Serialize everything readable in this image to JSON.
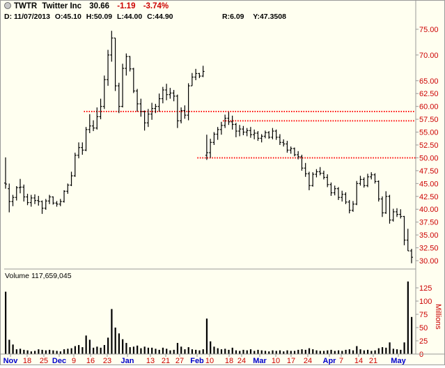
{
  "header": {
    "symbol": "TWTR",
    "name": "Twitter Inc",
    "last": "30.66",
    "change": "-1.19",
    "change_pct": "-3.74%",
    "info_date": "D: 11/07/2013",
    "info_open": "O:45.10",
    "info_high": "H:50.09",
    "info_low": "L:44.00",
    "info_close": "C:44.90",
    "info_r": "R:6.09",
    "info_y": "Y:47.3508",
    "volume_label": "Volume 117,659,045"
  },
  "colors": {
    "background": "#fffff0",
    "bars": "#000000",
    "price_labels": "#cc0000",
    "month_labels": "#0000cc",
    "support_lines": "#ff0000"
  },
  "chart_data": {
    "type": "ohlc",
    "price_ylim": [
      28.8,
      77.5
    ],
    "price_ticks": [
      "75.00",
      "70.00",
      "65.00",
      "62.50",
      "60.00",
      "57.50",
      "55.00",
      "52.50",
      "50.00",
      "47.50",
      "45.00",
      "42.50",
      "40.00",
      "37.50",
      "35.00",
      "32.50",
      "30.00"
    ],
    "volume_ylim": [
      0,
      140
    ],
    "volume_ticks": [
      "125",
      "100",
      "75",
      "50",
      "25",
      "0"
    ],
    "volume_axis_label": "Millions",
    "x_labels": [
      "Nov",
      "18",
      "25",
      "Dec",
      "9",
      "16",
      "23",
      "Jan",
      "13",
      "21",
      "27",
      "Feb",
      "10",
      "18",
      "24",
      "Mar",
      "10",
      "17",
      "24",
      "Apr",
      "7",
      "14",
      "21",
      "May"
    ],
    "month_labels": [
      "Nov",
      "Dec",
      "Jan",
      "Feb",
      "Mar",
      "Apr",
      "May"
    ],
    "horizontal_lines": [
      {
        "price": 59.0,
        "from_index": 22
      },
      {
        "price": 57.2,
        "from_index": 60
      },
      {
        "price": 50.0,
        "from_index": 53
      }
    ],
    "bars": [
      {
        "o": 45.1,
        "h": 50.09,
        "l": 44.0,
        "c": 44.9,
        "v": 117.7
      },
      {
        "o": 44.0,
        "h": 45.0,
        "l": 39.4,
        "c": 41.5,
        "v": 27
      },
      {
        "o": 41.5,
        "h": 42.8,
        "l": 40.6,
        "c": 42.3,
        "v": 18
      },
      {
        "o": 42.3,
        "h": 44.5,
        "l": 41.7,
        "c": 44.2,
        "v": 9
      },
      {
        "o": 44.2,
        "h": 45.9,
        "l": 43.1,
        "c": 44.3,
        "v": 10
      },
      {
        "o": 44.3,
        "h": 44.8,
        "l": 41.5,
        "c": 42.4,
        "v": 8
      },
      {
        "o": 42.4,
        "h": 43.0,
        "l": 40.8,
        "c": 41.3,
        "v": 7
      },
      {
        "o": 41.3,
        "h": 42.8,
        "l": 40.5,
        "c": 42.2,
        "v": 5
      },
      {
        "o": 42.2,
        "h": 42.9,
        "l": 41.0,
        "c": 41.7,
        "v": 6
      },
      {
        "o": 41.7,
        "h": 42.6,
        "l": 40.7,
        "c": 41.5,
        "v": 9
      },
      {
        "o": 41.5,
        "h": 41.7,
        "l": 39.1,
        "c": 40.2,
        "v": 8
      },
      {
        "o": 40.2,
        "h": 42.0,
        "l": 39.9,
        "c": 41.6,
        "v": 7
      },
      {
        "o": 41.6,
        "h": 42.8,
        "l": 41.0,
        "c": 42.4,
        "v": 8
      },
      {
        "o": 42.4,
        "h": 42.5,
        "l": 40.9,
        "c": 41.2,
        "v": 7
      },
      {
        "o": 41.2,
        "h": 41.6,
        "l": 40.5,
        "c": 41.0,
        "v": 6
      },
      {
        "o": 41.0,
        "h": 42.0,
        "l": 40.6,
        "c": 41.5,
        "v": 5
      },
      {
        "o": 41.5,
        "h": 43.7,
        "l": 41.3,
        "c": 43.5,
        "v": 9
      },
      {
        "o": 43.5,
        "h": 45.0,
        "l": 43.0,
        "c": 44.7,
        "v": 10
      },
      {
        "o": 44.7,
        "h": 47.3,
        "l": 44.5,
        "c": 46.5,
        "v": 11
      },
      {
        "o": 46.5,
        "h": 51.0,
        "l": 46.3,
        "c": 50.5,
        "v": 15
      },
      {
        "o": 50.5,
        "h": 53.0,
        "l": 49.9,
        "c": 52.0,
        "v": 17
      },
      {
        "o": 52.0,
        "h": 53.0,
        "l": 50.6,
        "c": 51.5,
        "v": 13
      },
      {
        "o": 51.5,
        "h": 56.0,
        "l": 51.3,
        "c": 55.5,
        "v": 35
      },
      {
        "o": 55.5,
        "h": 58.5,
        "l": 54.8,
        "c": 56.2,
        "v": 27
      },
      {
        "o": 56.2,
        "h": 57.3,
        "l": 55.2,
        "c": 55.8,
        "v": 12
      },
      {
        "o": 55.8,
        "h": 59.8,
        "l": 55.5,
        "c": 58.0,
        "v": 14
      },
      {
        "o": 58.0,
        "h": 61.5,
        "l": 57.5,
        "c": 60.0,
        "v": 12
      },
      {
        "o": 60.0,
        "h": 66.0,
        "l": 59.5,
        "c": 65.2,
        "v": 17
      },
      {
        "o": 65.2,
        "h": 71.0,
        "l": 64.0,
        "c": 70.0,
        "v": 31
      },
      {
        "o": 70.0,
        "h": 74.7,
        "l": 68.7,
        "c": 73.3,
        "v": 85
      },
      {
        "o": 73.3,
        "h": 70.0,
        "l": 63.0,
        "c": 64.0,
        "v": 50
      },
      {
        "o": 64.0,
        "h": 64.6,
        "l": 58.7,
        "c": 60.0,
        "v": 39
      },
      {
        "o": 60.0,
        "h": 68.3,
        "l": 59.8,
        "c": 67.4,
        "v": 28
      },
      {
        "o": 67.4,
        "h": 70.3,
        "l": 66.0,
        "c": 69.7,
        "v": 21
      },
      {
        "o": 69.7,
        "h": 69.8,
        "l": 66.8,
        "c": 67.3,
        "v": 13
      },
      {
        "o": 67.3,
        "h": 67.5,
        "l": 62.6,
        "c": 63.0,
        "v": 14
      },
      {
        "o": 63.0,
        "h": 63.4,
        "l": 59.0,
        "c": 60.5,
        "v": 16
      },
      {
        "o": 60.5,
        "h": 61.5,
        "l": 58.0,
        "c": 59.0,
        "v": 11
      },
      {
        "o": 59.0,
        "h": 59.2,
        "l": 55.3,
        "c": 56.8,
        "v": 14
      },
      {
        "o": 56.8,
        "h": 59.5,
        "l": 56.0,
        "c": 58.5,
        "v": 12
      },
      {
        "o": 58.5,
        "h": 60.7,
        "l": 57.4,
        "c": 59.6,
        "v": 12
      },
      {
        "o": 59.6,
        "h": 60.5,
        "l": 58.7,
        "c": 60.0,
        "v": 10
      },
      {
        "o": 60.0,
        "h": 62.5,
        "l": 59.0,
        "c": 61.5,
        "v": 8
      },
      {
        "o": 61.5,
        "h": 63.8,
        "l": 60.6,
        "c": 63.2,
        "v": 12
      },
      {
        "o": 63.2,
        "h": 64.4,
        "l": 61.2,
        "c": 62.3,
        "v": 10
      },
      {
        "o": 62.3,
        "h": 63.6,
        "l": 61.5,
        "c": 62.6,
        "v": 7
      },
      {
        "o": 62.6,
        "h": 63.2,
        "l": 61.0,
        "c": 62.0,
        "v": 8
      },
      {
        "o": 62.0,
        "h": 62.3,
        "l": 55.8,
        "c": 57.2,
        "v": 21
      },
      {
        "o": 57.2,
        "h": 59.8,
        "l": 56.7,
        "c": 59.2,
        "v": 14
      },
      {
        "o": 59.2,
        "h": 60.2,
        "l": 57.6,
        "c": 58.3,
        "v": 9
      },
      {
        "o": 58.3,
        "h": 64.5,
        "l": 57.3,
        "c": 64.0,
        "v": 13
      },
      {
        "o": 64.0,
        "h": 66.5,
        "l": 64.0,
        "c": 65.7,
        "v": 9
      },
      {
        "o": 65.7,
        "h": 67.3,
        "l": 65.1,
        "c": 66.4,
        "v": 8
      },
      {
        "o": 66.4,
        "h": 66.5,
        "l": 65.5,
        "c": 65.9,
        "v": 7
      },
      {
        "o": 65.9,
        "h": 67.9,
        "l": 65.7,
        "c": 66.8,
        "v": 9
      },
      {
        "o": 50.5,
        "h": 54.5,
        "l": 49.6,
        "c": 51.0,
        "v": 67
      },
      {
        "o": 51.0,
        "h": 53.7,
        "l": 50.0,
        "c": 53.0,
        "v": 24
      },
      {
        "o": 53.0,
        "h": 55.0,
        "l": 52.5,
        "c": 54.6,
        "v": 14
      },
      {
        "o": 54.6,
        "h": 56.0,
        "l": 53.5,
        "c": 55.5,
        "v": 11
      },
      {
        "o": 55.5,
        "h": 57.0,
        "l": 54.5,
        "c": 56.3,
        "v": 9
      },
      {
        "o": 56.3,
        "h": 58.4,
        "l": 55.8,
        "c": 57.7,
        "v": 10
      },
      {
        "o": 57.7,
        "h": 58.9,
        "l": 56.4,
        "c": 57.0,
        "v": 8
      },
      {
        "o": 57.0,
        "h": 58.2,
        "l": 55.5,
        "c": 56.5,
        "v": 12
      },
      {
        "o": 56.5,
        "h": 56.8,
        "l": 54.0,
        "c": 55.2,
        "v": 7
      },
      {
        "o": 55.2,
        "h": 56.4,
        "l": 54.2,
        "c": 55.6,
        "v": 6
      },
      {
        "o": 55.6,
        "h": 56.2,
        "l": 54.4,
        "c": 55.0,
        "v": 8
      },
      {
        "o": 55.0,
        "h": 55.8,
        "l": 54.2,
        "c": 55.3,
        "v": 7
      },
      {
        "o": 55.3,
        "h": 56.0,
        "l": 53.9,
        "c": 54.5,
        "v": 9
      },
      {
        "o": 54.5,
        "h": 55.5,
        "l": 53.6,
        "c": 54.8,
        "v": 6
      },
      {
        "o": 54.8,
        "h": 55.2,
        "l": 53.3,
        "c": 53.8,
        "v": 8
      },
      {
        "o": 53.8,
        "h": 54.6,
        "l": 53.0,
        "c": 54.2,
        "v": 7
      },
      {
        "o": 54.2,
        "h": 55.3,
        "l": 53.8,
        "c": 54.9,
        "v": 6
      },
      {
        "o": 54.9,
        "h": 55.2,
        "l": 53.7,
        "c": 54.0,
        "v": 5
      },
      {
        "o": 54.0,
        "h": 55.8,
        "l": 53.6,
        "c": 55.2,
        "v": 7
      },
      {
        "o": 55.2,
        "h": 55.5,
        "l": 53.5,
        "c": 54.0,
        "v": 6
      },
      {
        "o": 54.0,
        "h": 54.6,
        "l": 52.5,
        "c": 53.0,
        "v": 7
      },
      {
        "o": 53.0,
        "h": 53.6,
        "l": 52.2,
        "c": 52.7,
        "v": 5
      },
      {
        "o": 52.7,
        "h": 53.3,
        "l": 51.0,
        "c": 51.5,
        "v": 7
      },
      {
        "o": 51.5,
        "h": 52.2,
        "l": 50.8,
        "c": 51.8,
        "v": 6
      },
      {
        "o": 51.8,
        "h": 52.0,
        "l": 50.3,
        "c": 50.6,
        "v": 6
      },
      {
        "o": 50.6,
        "h": 51.3,
        "l": 49.7,
        "c": 50.2,
        "v": 8
      },
      {
        "o": 50.2,
        "h": 50.6,
        "l": 47.5,
        "c": 48.0,
        "v": 9
      },
      {
        "o": 48.0,
        "h": 49.0,
        "l": 46.3,
        "c": 46.9,
        "v": 8
      },
      {
        "o": 46.9,
        "h": 47.3,
        "l": 43.7,
        "c": 44.6,
        "v": 11
      },
      {
        "o": 44.6,
        "h": 47.2,
        "l": 44.4,
        "c": 46.8,
        "v": 9
      },
      {
        "o": 46.8,
        "h": 47.8,
        "l": 46.2,
        "c": 47.3,
        "v": 7
      },
      {
        "o": 47.3,
        "h": 48.2,
        "l": 46.6,
        "c": 47.0,
        "v": 6
      },
      {
        "o": 47.0,
        "h": 47.5,
        "l": 45.8,
        "c": 46.2,
        "v": 6
      },
      {
        "o": 46.2,
        "h": 46.8,
        "l": 44.3,
        "c": 44.8,
        "v": 7
      },
      {
        "o": 44.8,
        "h": 45.2,
        "l": 42.6,
        "c": 43.2,
        "v": 8
      },
      {
        "o": 43.2,
        "h": 44.6,
        "l": 42.7,
        "c": 44.0,
        "v": 6
      },
      {
        "o": 44.0,
        "h": 44.3,
        "l": 41.8,
        "c": 42.3,
        "v": 7
      },
      {
        "o": 42.3,
        "h": 43.6,
        "l": 41.5,
        "c": 42.9,
        "v": 6
      },
      {
        "o": 42.9,
        "h": 43.3,
        "l": 41.0,
        "c": 41.4,
        "v": 8
      },
      {
        "o": 41.4,
        "h": 41.8,
        "l": 39.2,
        "c": 39.8,
        "v": 9
      },
      {
        "o": 39.8,
        "h": 41.6,
        "l": 39.5,
        "c": 41.0,
        "v": 7
      },
      {
        "o": 41.0,
        "h": 45.5,
        "l": 40.8,
        "c": 45.0,
        "v": 15
      },
      {
        "o": 45.0,
        "h": 46.5,
        "l": 44.6,
        "c": 45.8,
        "v": 9
      },
      {
        "o": 45.8,
        "h": 46.2,
        "l": 44.2,
        "c": 44.6,
        "v": 7
      },
      {
        "o": 44.6,
        "h": 46.9,
        "l": 44.3,
        "c": 46.3,
        "v": 8
      },
      {
        "o": 46.3,
        "h": 47.2,
        "l": 45.8,
        "c": 46.7,
        "v": 6
      },
      {
        "o": 46.7,
        "h": 47.0,
        "l": 45.0,
        "c": 45.4,
        "v": 7
      },
      {
        "o": 45.4,
        "h": 45.6,
        "l": 41.5,
        "c": 42.0,
        "v": 11
      },
      {
        "o": 42.0,
        "h": 42.5,
        "l": 38.5,
        "c": 39.3,
        "v": 13
      },
      {
        "o": 39.3,
        "h": 43.5,
        "l": 39.1,
        "c": 42.5,
        "v": 12
      },
      {
        "o": 42.5,
        "h": 42.8,
        "l": 37.2,
        "c": 37.9,
        "v": 22
      },
      {
        "o": 37.9,
        "h": 40.1,
        "l": 37.6,
        "c": 39.5,
        "v": 10
      },
      {
        "o": 39.5,
        "h": 40.2,
        "l": 38.5,
        "c": 39.0,
        "v": 9
      },
      {
        "o": 39.0,
        "h": 40.0,
        "l": 38.2,
        "c": 38.6,
        "v": 8
      },
      {
        "o": 38.6,
        "h": 38.7,
        "l": 33.0,
        "c": 34.0,
        "v": 22
      },
      {
        "o": 34.0,
        "h": 36.2,
        "l": 32.0,
        "c": 31.9,
        "v": 137
      },
      {
        "o": 31.9,
        "h": 32.3,
        "l": 29.5,
        "c": 30.66,
        "v": 70
      }
    ]
  }
}
